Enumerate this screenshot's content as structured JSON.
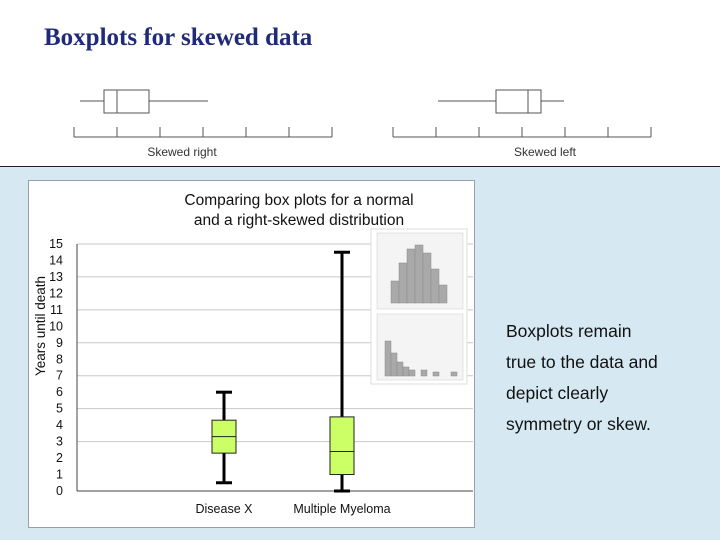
{
  "slide": {
    "title": "Boxplots for skewed data",
    "body_lines": [
      "Boxplots remain",
      "true to the data and",
      "depict clearly",
      "symmetry or skew."
    ]
  },
  "sketches": {
    "right_label": "Skewed right",
    "left_label": "Skewed left"
  },
  "chart_data": {
    "type": "boxplot",
    "title_lines": [
      "Comparing box plots for a normal",
      "and a right-skewed distribution"
    ],
    "ylabel": "Years until death",
    "ylim": [
      0,
      15
    ],
    "yticks": [
      0,
      1,
      2,
      3,
      4,
      5,
      6,
      7,
      8,
      9,
      10,
      11,
      12,
      13,
      14,
      15
    ],
    "grid": "horizontal every 2 years",
    "box_color": "#ccff66",
    "categories": [
      "Disease X",
      "Multiple Myeloma"
    ],
    "boxes": [
      {
        "name": "Disease X",
        "min": 0.5,
        "q1": 2.3,
        "median": 3.3,
        "q3": 4.3,
        "max": 6
      },
      {
        "name": "Multiple Myeloma",
        "min": 0,
        "q1": 1,
        "median": 2.4,
        "q3": 4.5,
        "max": 14.5
      }
    ]
  }
}
